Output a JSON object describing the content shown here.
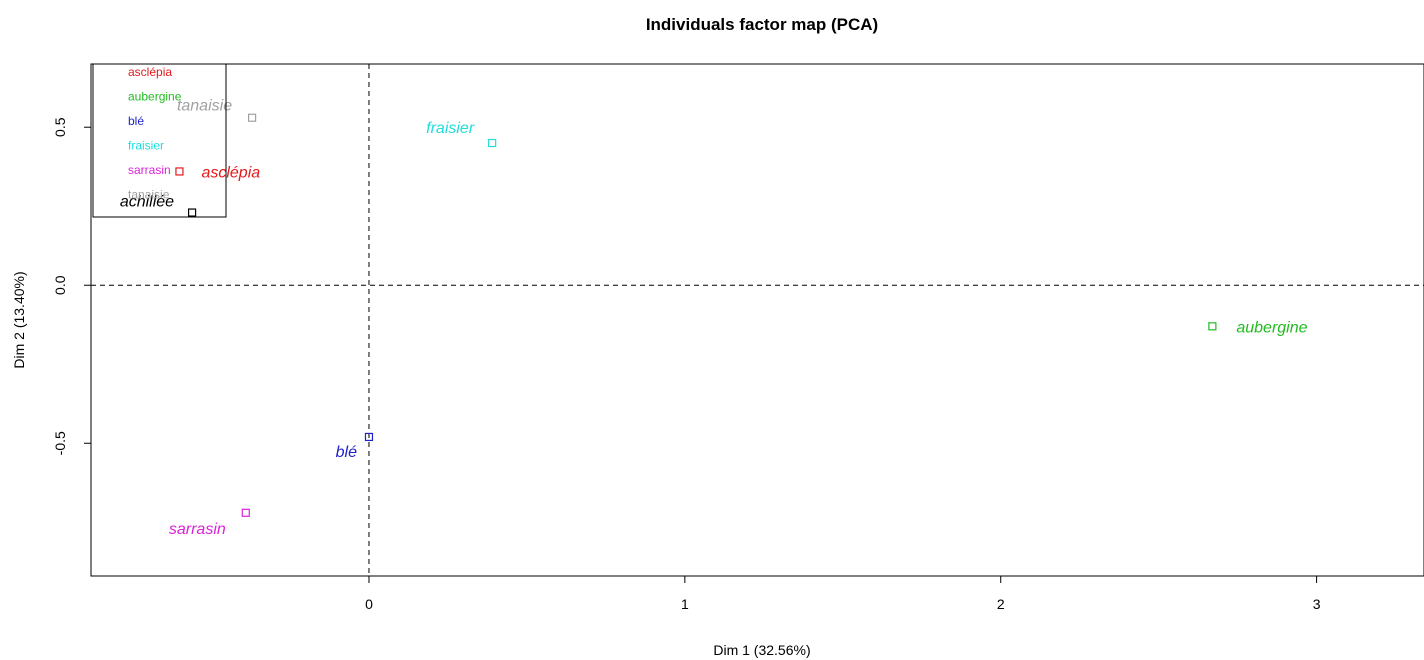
{
  "chart_data": {
    "type": "scatter",
    "title": "Individuals factor map (PCA)",
    "xlabel": "Dim 1 (32.56%)",
    "ylabel": "Dim 2 (13.40%)",
    "xlim": [
      -0.88,
      3.34
    ],
    "ylim": [
      -0.92,
      0.7
    ],
    "x_ticks": [
      0,
      1,
      2,
      3
    ],
    "x_tick_labels": [
      "0",
      "1",
      "2",
      "3"
    ],
    "y_ticks": [
      -0.5,
      0.0,
      0.5
    ],
    "y_tick_labels": [
      "-0.5",
      "0.0",
      "0.5"
    ],
    "reference_lines": {
      "x": 0,
      "y": 0,
      "style": "dashed"
    },
    "legend_position": "top-left",
    "points": [
      {
        "label": "asclépia",
        "x": -0.6,
        "y": 0.36,
        "color": "#e41a1c"
      },
      {
        "label": "aubergine",
        "x": 2.67,
        "y": -0.13,
        "color": "#22bb22"
      },
      {
        "label": "blé",
        "x": 0.0,
        "y": -0.48,
        "color": "#2222cc"
      },
      {
        "label": "fraisier",
        "x": 0.39,
        "y": 0.45,
        "color": "#22dddd"
      },
      {
        "label": "sarrasin",
        "x": -0.39,
        "y": -0.72,
        "color": "#dd22dd"
      },
      {
        "label": "tanaisie",
        "x": -0.37,
        "y": 0.53,
        "color": "#a0a0a0"
      },
      {
        "label": "achillée",
        "x": -0.56,
        "y": 0.23,
        "color": "#000000"
      }
    ],
    "legend": [
      {
        "label": "asclépia",
        "color": "#e41a1c"
      },
      {
        "label": "aubergine",
        "color": "#22bb22"
      },
      {
        "label": "blé",
        "color": "#2222cc"
      },
      {
        "label": "fraisier",
        "color": "#22dddd"
      },
      {
        "label": "sarrasin",
        "color": "#dd22dd"
      },
      {
        "label": "tanaisie",
        "color": "#a0a0a0"
      }
    ]
  }
}
